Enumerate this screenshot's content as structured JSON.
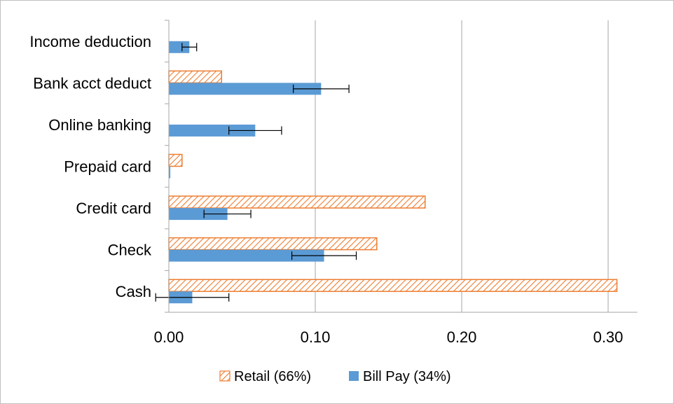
{
  "chart_data": {
    "type": "bar",
    "orientation": "horizontal",
    "categories": [
      "Income deduction",
      "Bank acct deduct",
      "Online banking",
      "Prepaid card",
      "Credit card",
      "Check",
      "Cash"
    ],
    "series": [
      {
        "name": "Retail (66%)",
        "color": "#ED7D31",
        "pattern": "diagonal-hatch",
        "values": [
          0,
          0.036,
          0,
          0.009,
          0.175,
          0.142,
          0.306
        ]
      },
      {
        "name": "Bill Pay (34%)",
        "color": "#5B9BD5",
        "pattern": "solid",
        "values": [
          0.014,
          0.104,
          0.059,
          0.001,
          0.04,
          0.106,
          0.016
        ],
        "error": [
          0.005,
          0.019,
          0.018,
          null,
          0.016,
          0.022,
          0.025
        ]
      }
    ],
    "xlim": [
      0,
      0.32
    ],
    "xticks": [
      0,
      0.1,
      0.2,
      0.3
    ],
    "xtick_labels": [
      "0.00",
      "0.10",
      "0.20",
      "0.30"
    ],
    "title": "",
    "xlabel": "",
    "ylabel": "",
    "grid": "vertical",
    "legend_position": "bottom"
  }
}
